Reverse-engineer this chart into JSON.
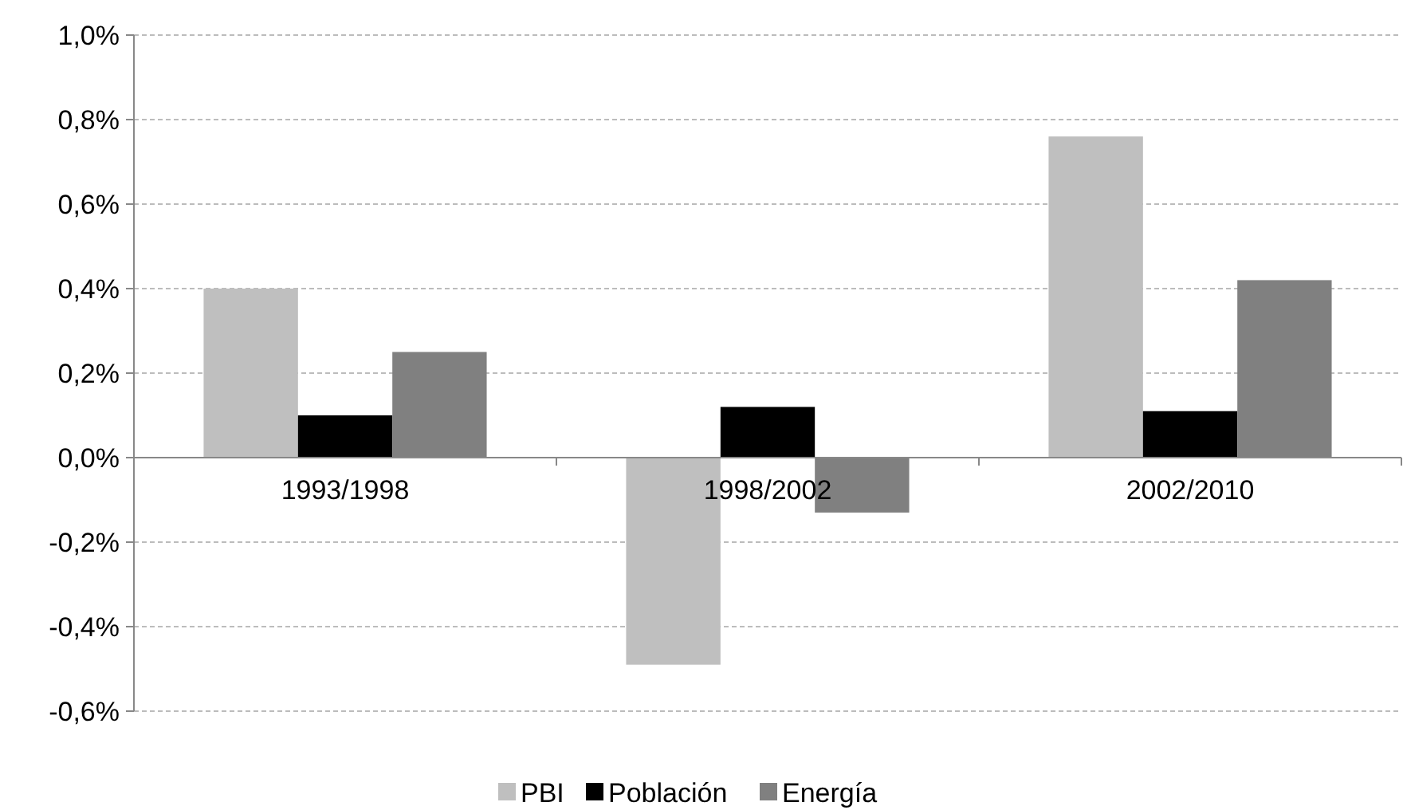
{
  "chart_data": {
    "type": "bar",
    "categories": [
      "1993/1998",
      "1998/2002",
      "2002/2010"
    ],
    "series": [
      {
        "name": "PBI",
        "color": "#bfbfbf",
        "values": [
          0.4,
          -0.49,
          0.76
        ]
      },
      {
        "name": "Población",
        "color": "#000000",
        "values": [
          0.1,
          0.12,
          0.11
        ]
      },
      {
        "name": "Energía",
        "color": "#808080",
        "values": [
          0.25,
          -0.13,
          0.42
        ]
      }
    ],
    "ylim": [
      -0.6,
      1.0
    ],
    "yticks": [
      {
        "value": -0.6,
        "label": "-0,6%"
      },
      {
        "value": -0.4,
        "label": "-0,4%"
      },
      {
        "value": -0.2,
        "label": "-0,2%"
      },
      {
        "value": 0,
        "label": "0,0%"
      },
      {
        "value": 0.2,
        "label": "0,2%"
      },
      {
        "value": 0.4,
        "label": "0,4%"
      },
      {
        "value": 0.6,
        "label": "0,6%"
      },
      {
        "value": 0.8,
        "label": "0,8%"
      },
      {
        "value": 1.0,
        "label": "1,0%"
      }
    ],
    "grid": "y",
    "legend": "bottom"
  }
}
